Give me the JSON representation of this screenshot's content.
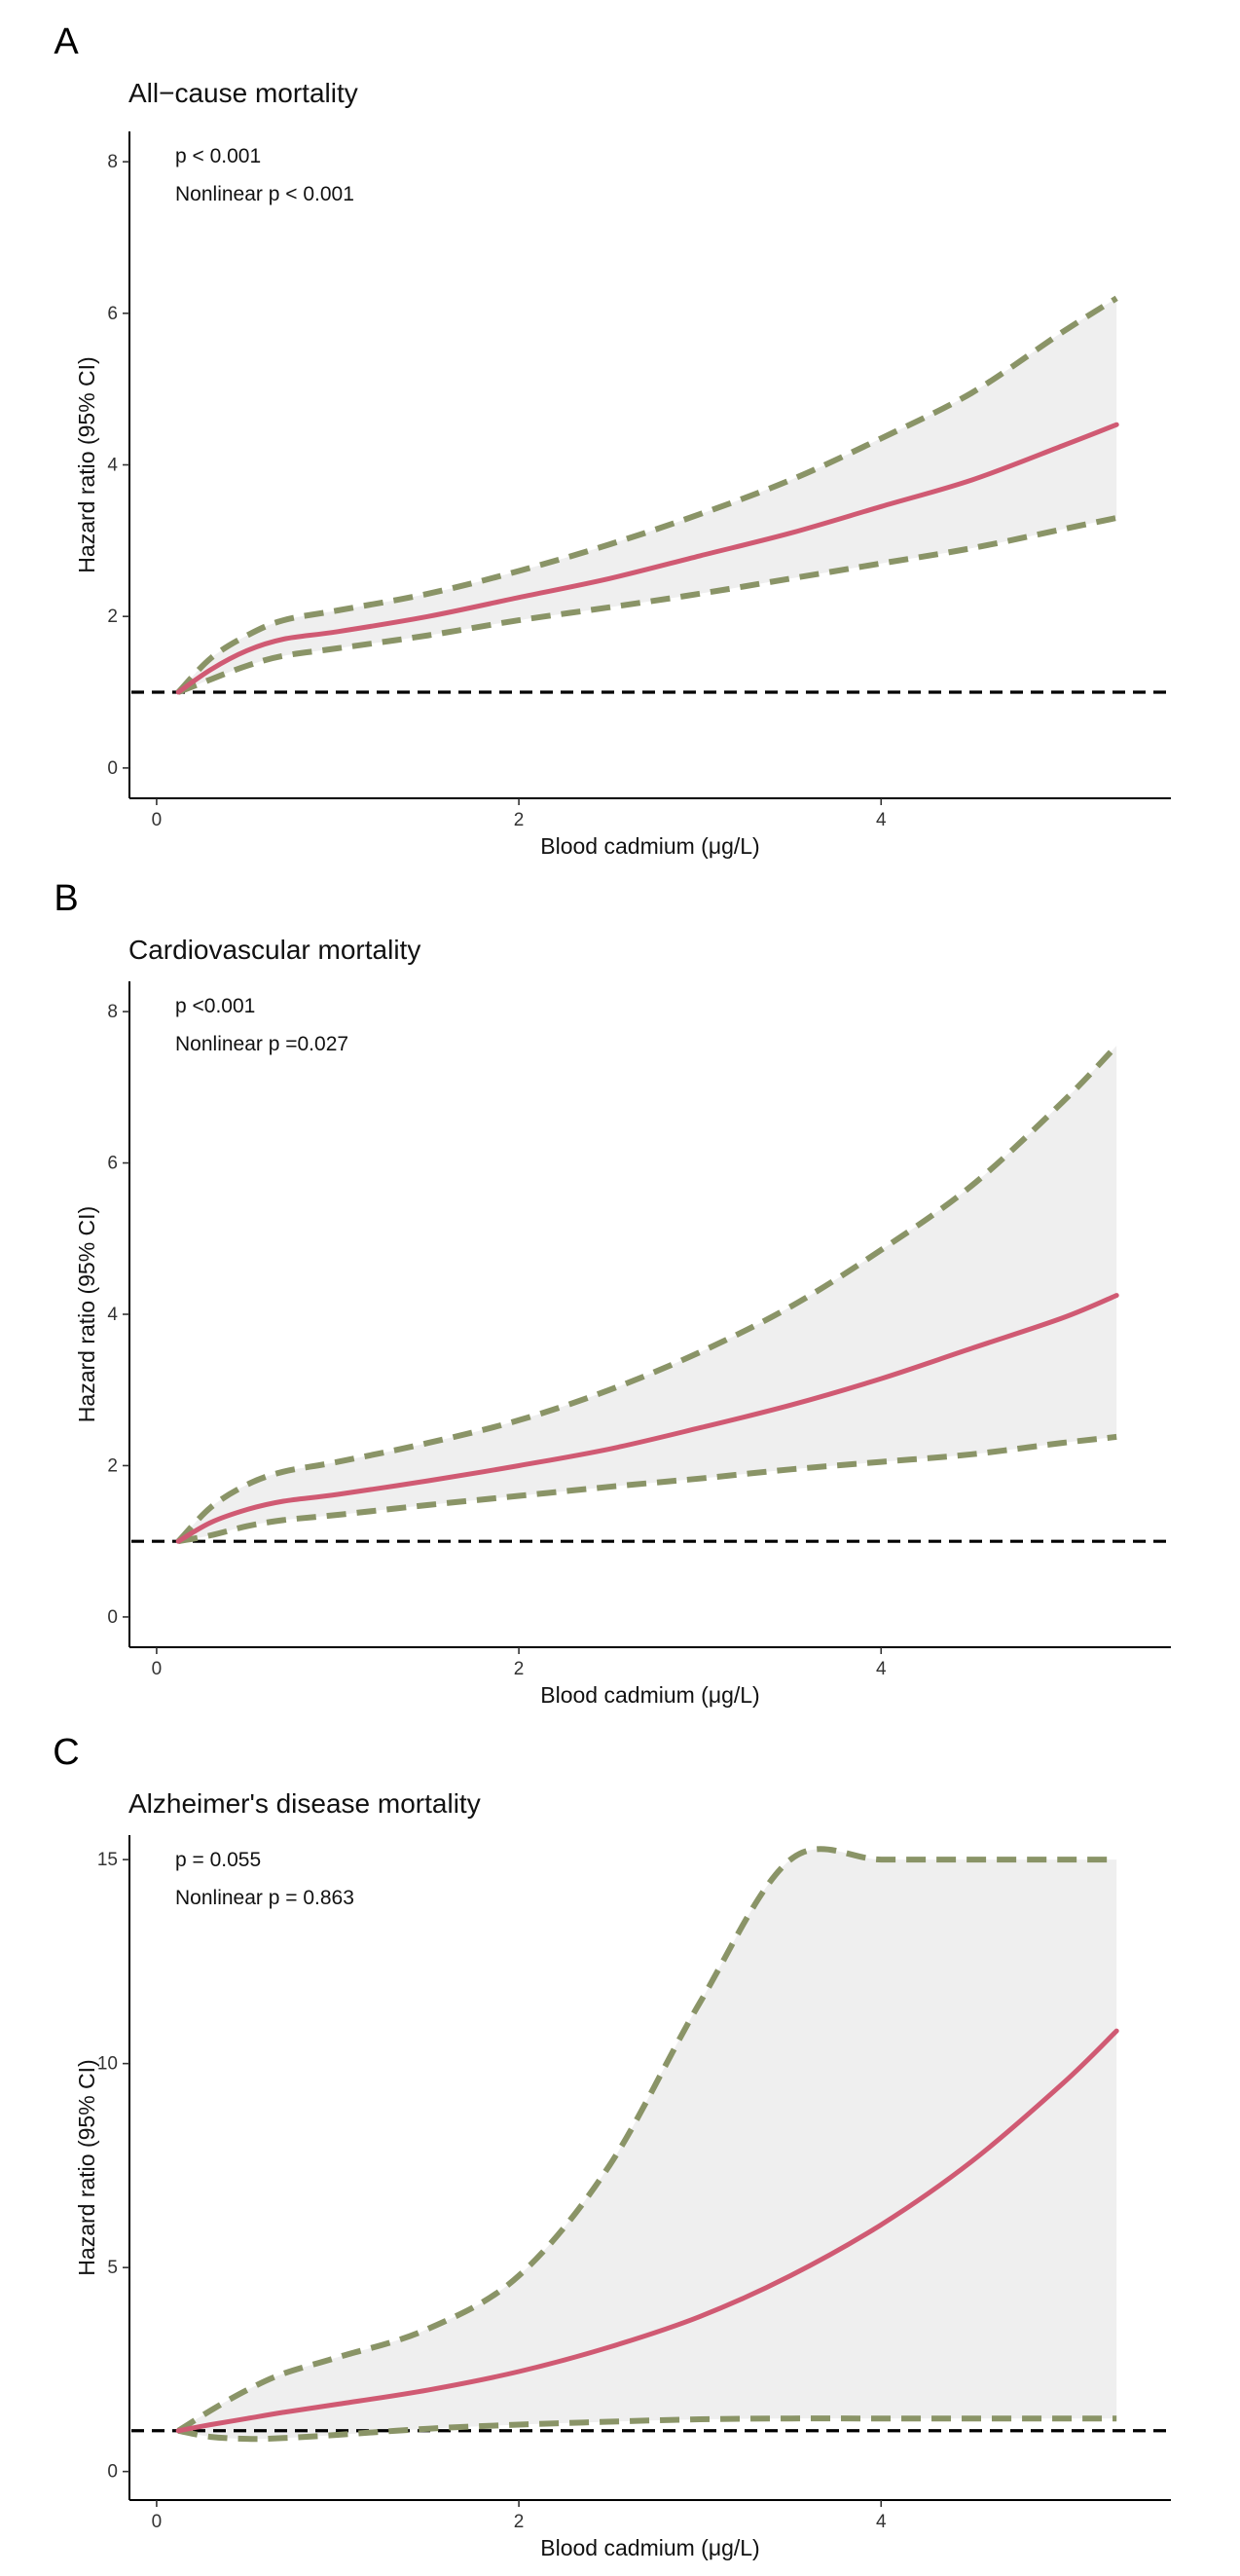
{
  "figure": {
    "xlabel": "Blood cadmium (μg/L)",
    "ylabel": "Hazard ratio (95% CI)"
  },
  "colors": {
    "estimate": "#d05a73",
    "ci_line": "#8a9467",
    "ci_band": "#efefef",
    "reference": "#000000"
  },
  "chart_data": [
    {
      "type": "line",
      "panel": "A",
      "title": "All−cause mortality",
      "annotations": [
        "p < 0.001",
        "Nonlinear p < 0.001"
      ],
      "xlabel": "Blood cadmium (μg/L)",
      "ylabel": "Hazard ratio (95% CI)",
      "xlim": [
        -0.15,
        5.6
      ],
      "ylim": [
        -0.4,
        8.4
      ],
      "xticks": [
        0,
        2,
        4
      ],
      "yticks": [
        0,
        2,
        4,
        6,
        8
      ],
      "reference_line": 1,
      "x": [
        0.12,
        0.3,
        0.5,
        0.7,
        1.0,
        1.5,
        2.0,
        2.5,
        3.0,
        3.5,
        4.0,
        4.5,
        5.0,
        5.3
      ],
      "series": [
        {
          "name": "HR",
          "values": [
            1.0,
            1.3,
            1.55,
            1.7,
            1.8,
            2.0,
            2.25,
            2.5,
            2.8,
            3.1,
            3.45,
            3.8,
            4.25,
            4.53
          ]
        },
        {
          "name": "Upper 95% CI",
          "values": [
            1.0,
            1.45,
            1.75,
            1.95,
            2.08,
            2.3,
            2.6,
            2.95,
            3.35,
            3.8,
            4.35,
            4.95,
            5.75,
            6.2
          ]
        },
        {
          "name": "Lower 95% CI",
          "values": [
            1.0,
            1.17,
            1.35,
            1.48,
            1.58,
            1.75,
            1.95,
            2.12,
            2.3,
            2.5,
            2.7,
            2.9,
            3.15,
            3.3
          ]
        }
      ]
    },
    {
      "type": "line",
      "panel": "B",
      "title": "Cardiovascular mortality",
      "annotations": [
        "p <0.001",
        "Nonlinear p =0.027"
      ],
      "xlabel": "Blood cadmium (μg/L)",
      "ylabel": "Hazard ratio (95% CI)",
      "xlim": [
        -0.15,
        5.6
      ],
      "ylim": [
        -0.4,
        8.4
      ],
      "xticks": [
        0,
        2,
        4
      ],
      "yticks": [
        0,
        2,
        4,
        6,
        8
      ],
      "reference_line": 1,
      "x": [
        0.12,
        0.3,
        0.5,
        0.7,
        1.0,
        1.5,
        2.0,
        2.5,
        3.0,
        3.5,
        4.0,
        4.5,
        5.0,
        5.3
      ],
      "series": [
        {
          "name": "HR",
          "values": [
            1.0,
            1.25,
            1.42,
            1.53,
            1.62,
            1.8,
            2.0,
            2.22,
            2.5,
            2.8,
            3.15,
            3.55,
            3.95,
            4.25
          ]
        },
        {
          "name": "Upper 95% CI",
          "values": [
            1.0,
            1.45,
            1.75,
            1.92,
            2.05,
            2.3,
            2.6,
            3.0,
            3.5,
            4.1,
            4.85,
            5.7,
            6.8,
            7.55
          ]
        },
        {
          "name": "Lower 95% CI",
          "values": [
            1.0,
            1.08,
            1.2,
            1.28,
            1.35,
            1.48,
            1.6,
            1.72,
            1.83,
            1.95,
            2.05,
            2.15,
            2.3,
            2.38
          ]
        }
      ]
    },
    {
      "type": "line",
      "panel": "C",
      "title": "Alzheimer's disease mortality",
      "annotations": [
        "p = 0.055",
        "Nonlinear p = 0.863"
      ],
      "xlabel": "Blood cadmium (μg/L)",
      "ylabel": "Hazard ratio (95% CI)",
      "xlim": [
        -0.15,
        5.6
      ],
      "ylim": [
        -0.7,
        15.6
      ],
      "xticks": [
        0,
        2,
        4
      ],
      "yticks": [
        0,
        5,
        10,
        15
      ],
      "reference_line": 1,
      "x": [
        0.12,
        0.3,
        0.5,
        0.7,
        1.0,
        1.5,
        2.0,
        2.5,
        3.0,
        3.5,
        4.0,
        4.5,
        5.0,
        5.3
      ],
      "series": [
        {
          "name": "HR",
          "values": [
            1.0,
            1.15,
            1.3,
            1.45,
            1.65,
            2.0,
            2.45,
            3.05,
            3.8,
            4.8,
            6.05,
            7.6,
            9.5,
            10.8
          ]
        },
        {
          "name": "Upper 95% CI",
          "values": [
            1.0,
            1.5,
            2.0,
            2.4,
            2.8,
            3.5,
            4.8,
            7.5,
            11.5,
            15,
            15,
            15,
            15,
            15
          ]
        },
        {
          "name": "Lower 95% CI",
          "values": [
            1.0,
            0.85,
            0.8,
            0.82,
            0.9,
            1.05,
            1.15,
            1.22,
            1.28,
            1.3,
            1.3,
            1.3,
            1.3,
            1.3
          ]
        }
      ]
    }
  ]
}
